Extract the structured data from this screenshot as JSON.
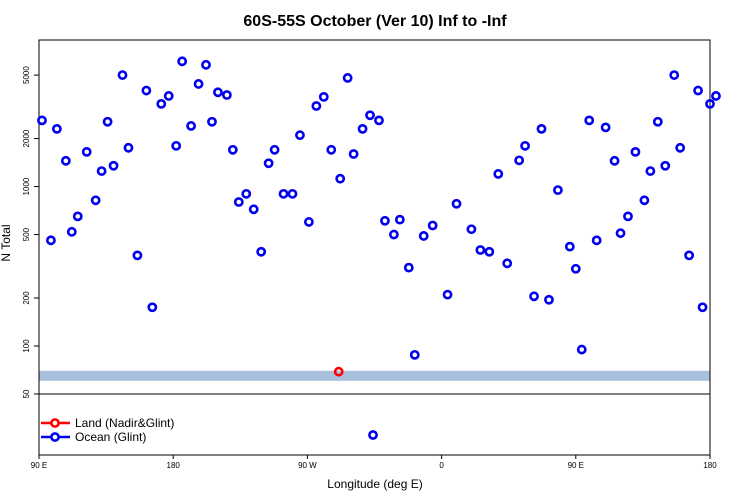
{
  "chart_data": {
    "type": "scatter",
    "title": "60S-55S October (Ver 10)   Inf to -Inf",
    "xlabel": "Longitude (deg E)",
    "ylabel": "N Total",
    "x_ticks": [
      {
        "value": 90,
        "label": "90 E"
      },
      {
        "value": 180,
        "label": "180"
      },
      {
        "value": 270,
        "label": "90 W"
      },
      {
        "value": 360,
        "label": "0"
      },
      {
        "value": 450,
        "label": "90 E"
      },
      {
        "value": 540,
        "label": "180"
      }
    ],
    "y_ticks": [
      {
        "value": 50,
        "label": "50"
      },
      {
        "value": 100,
        "label": "100"
      },
      {
        "value": 200,
        "label": "200"
      },
      {
        "value": 500,
        "label": "500"
      },
      {
        "value": 1000,
        "label": "1000"
      },
      {
        "value": 2000,
        "label": "2000"
      },
      {
        "value": 5000,
        "label": "5000"
      }
    ],
    "xlim": [
      90,
      540
    ],
    "ylim": [
      50,
      8300
    ],
    "y_scale": "log",
    "band_y": 65,
    "band_color": "#a8bfde",
    "legend": {
      "placement": "bottom-left",
      "entries": [
        {
          "label": "Land (Nadir&Glint)",
          "color": "#ff0000"
        },
        {
          "label": "Ocean (Glint)",
          "color": "#0000ee"
        }
      ]
    },
    "series": [
      {
        "name": "Land (Nadir&Glint)",
        "color": "#ff0000",
        "points": [
          [
            291,
            69
          ]
        ]
      },
      {
        "name": "Ocean (Glint)",
        "color": "#0000ee",
        "below_panel_points": [
          [
            314
          ]
        ],
        "points": [
          [
            92,
            2600
          ],
          [
            98,
            460
          ],
          [
            102,
            2300
          ],
          [
            108,
            1450
          ],
          [
            112,
            520
          ],
          [
            116,
            650
          ],
          [
            122,
            1650
          ],
          [
            128,
            820
          ],
          [
            132,
            1250
          ],
          [
            136,
            2550
          ],
          [
            140,
            1350
          ],
          [
            146,
            5000
          ],
          [
            150,
            1750
          ],
          [
            156,
            370
          ],
          [
            162,
            4000
          ],
          [
            166,
            175
          ],
          [
            172,
            3300
          ],
          [
            177,
            3700
          ],
          [
            182,
            1800
          ],
          [
            186,
            6100
          ],
          [
            192,
            2400
          ],
          [
            197,
            4400
          ],
          [
            202,
            5800
          ],
          [
            206,
            2550
          ],
          [
            210,
            3900
          ],
          [
            216,
            3750
          ],
          [
            220,
            1700
          ],
          [
            224,
            800
          ],
          [
            229,
            900
          ],
          [
            234,
            720
          ],
          [
            239,
            390
          ],
          [
            244,
            1400
          ],
          [
            248,
            1700
          ],
          [
            254,
            900
          ],
          [
            260,
            900
          ],
          [
            265,
            2100
          ],
          [
            271,
            600
          ],
          [
            276,
            3200
          ],
          [
            281,
            3650
          ],
          [
            286,
            1700
          ],
          [
            292,
            1120
          ],
          [
            297,
            4800
          ],
          [
            301,
            1600
          ],
          [
            307,
            2300
          ],
          [
            312,
            2800
          ],
          [
            318,
            2600
          ],
          [
            322,
            610
          ],
          [
            328,
            500
          ],
          [
            332,
            620
          ],
          [
            338,
            310
          ],
          [
            342,
            88
          ],
          [
            348,
            490
          ],
          [
            354,
            570
          ],
          [
            364,
            210
          ],
          [
            370,
            780
          ],
          [
            380,
            540
          ],
          [
            386,
            400
          ],
          [
            392,
            390
          ],
          [
            398,
            1200
          ],
          [
            404,
            330
          ],
          [
            412,
            1460
          ],
          [
            416,
            1800
          ],
          [
            422,
            205
          ],
          [
            427,
            2300
          ],
          [
            432,
            195
          ],
          [
            438,
            950
          ],
          [
            446,
            420
          ],
          [
            450,
            305
          ],
          [
            454,
            95
          ],
          [
            459,
            2600
          ],
          [
            464,
            460
          ],
          [
            470,
            2350
          ],
          [
            476,
            1450
          ],
          [
            480,
            510
          ],
          [
            485,
            650
          ],
          [
            490,
            1650
          ],
          [
            496,
            820
          ],
          [
            500,
            1250
          ],
          [
            505,
            2550
          ],
          [
            510,
            1350
          ],
          [
            516,
            5000
          ],
          [
            520,
            1750
          ],
          [
            526,
            370
          ],
          [
            532,
            4000
          ],
          [
            535,
            175
          ],
          [
            540,
            3300
          ],
          [
            544,
            3700
          ]
        ]
      }
    ]
  }
}
